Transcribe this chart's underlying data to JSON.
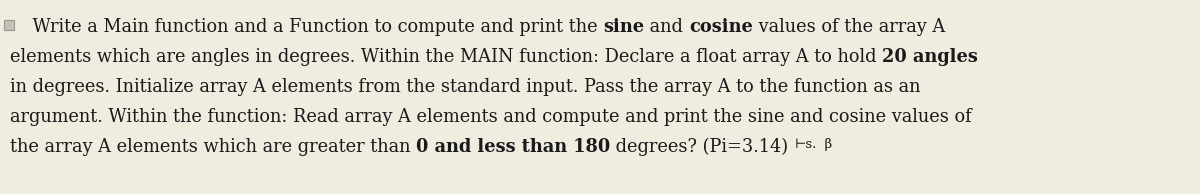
{
  "bg_color": "#f0ece0",
  "text_color": "#1a1a1a",
  "font_size": 12.8,
  "small_font_size": 9.5,
  "fig_width": 12.0,
  "fig_height": 1.94,
  "dpi": 100,
  "checkbox_color": "#c8c0b0",
  "lines": [
    [
      {
        "text": "    Write a Main function and a Function to compute and print the ",
        "bold": false
      },
      {
        "text": "sine",
        "bold": true
      },
      {
        "text": " and ",
        "bold": false
      },
      {
        "text": "cosine",
        "bold": true
      },
      {
        "text": " values of the array A",
        "bold": false
      }
    ],
    [
      {
        "text": "elements which are angles in degrees. Within the MAIN function: Declare a float array A to hold ",
        "bold": false
      },
      {
        "text": "20 angles",
        "bold": true
      }
    ],
    [
      {
        "text": "in degrees. Initialize array A elements from the standard input. Pass the array A to the function as an",
        "bold": false
      }
    ],
    [
      {
        "text": "argument. Within the function: Read array A elements and compute and print the sine and cosine values of",
        "bold": false
      }
    ],
    [
      {
        "text": "the array A elements which are greater than ",
        "bold": false
      },
      {
        "text": "0 and less than 180",
        "bold": true
      },
      {
        "text": " degrees? (Pi=3.14) ",
        "bold": false
      },
      {
        "text": "⊢s.",
        "bold": false,
        "small": true
      },
      {
        "text": "  β",
        "bold": false,
        "small": true
      }
    ]
  ]
}
